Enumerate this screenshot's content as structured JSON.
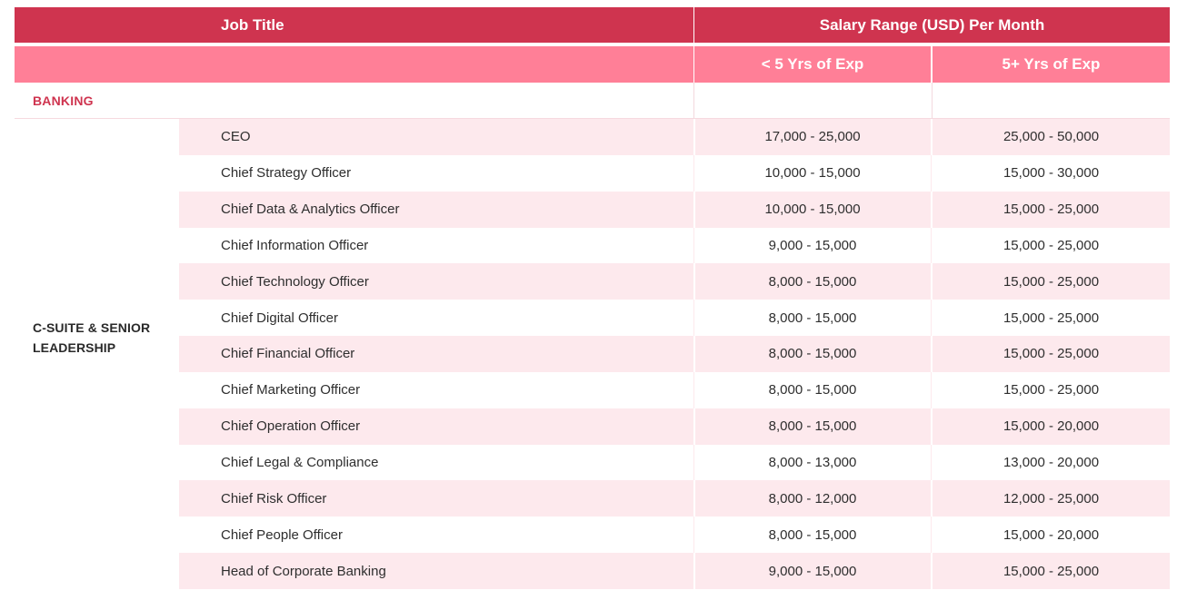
{
  "header": {
    "job_title": "Job Title",
    "salary_range": "Salary Range (USD) Per Month",
    "less_than_5": "< 5 Yrs of Exp",
    "more_than_5": "5+ Yrs of Exp"
  },
  "section": {
    "label": "BANKING",
    "group_label": "C-SUITE & SENIOR LEADERSHIP"
  },
  "rows": [
    {
      "title": "CEO",
      "lt5": "17,000 - 25,000",
      "gt5": "25,000 - 50,000"
    },
    {
      "title": "Chief Strategy Officer",
      "lt5": "10,000 - 15,000",
      "gt5": "15,000 - 30,000"
    },
    {
      "title": "Chief Data & Analytics Officer",
      "lt5": "10,000 - 15,000",
      "gt5": "15,000 - 25,000"
    },
    {
      "title": "Chief Information Officer",
      "lt5": "9,000 - 15,000",
      "gt5": "15,000 - 25,000"
    },
    {
      "title": "Chief Technology Officer",
      "lt5": "8,000 - 15,000",
      "gt5": "15,000 - 25,000"
    },
    {
      "title": "Chief Digital Officer",
      "lt5": "8,000 - 15,000",
      "gt5": "15,000 - 25,000"
    },
    {
      "title": "Chief Financial Officer",
      "lt5": "8,000 - 15,000",
      "gt5": "15,000 - 25,000"
    },
    {
      "title": "Chief Marketing Officer",
      "lt5": "8,000 - 15,000",
      "gt5": "15,000 - 25,000"
    },
    {
      "title": "Chief Operation Officer",
      "lt5": "8,000 - 15,000",
      "gt5": "15,000 - 20,000"
    },
    {
      "title": "Chief Legal & Compliance",
      "lt5": "8,000 - 13,000",
      "gt5": "13,000 - 20,000"
    },
    {
      "title": "Chief Risk Officer",
      "lt5": "8,000 - 12,000",
      "gt5": "12,000 - 25,000"
    },
    {
      "title": "Chief People Officer",
      "lt5": "8,000 - 15,000",
      "gt5": "15,000 - 20,000"
    },
    {
      "title": "Head of Corporate Banking",
      "lt5": "9,000 - 15,000",
      "gt5": "15,000 - 25,000"
    }
  ],
  "colors": {
    "header_primary": "#cf344f",
    "header_secondary": "#ff7f97",
    "row_alt": "#fde9ed",
    "section_text": "#cf344f"
  }
}
